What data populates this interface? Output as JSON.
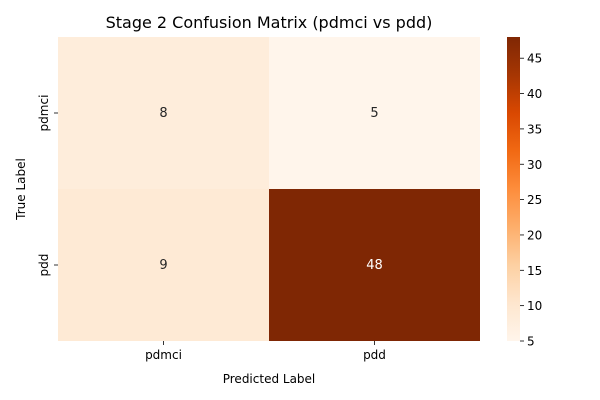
{
  "chart_data": {
    "type": "heatmap",
    "title": "Stage 2 Confusion Matrix (pdmci vs pdd)",
    "xlabel": "Predicted Label",
    "ylabel": "True Label",
    "x_categories": [
      "pdmci",
      "pdd"
    ],
    "y_categories": [
      "pdmci",
      "pdd"
    ],
    "values": [
      [
        8,
        5
      ],
      [
        9,
        48
      ]
    ],
    "colormap": "Oranges",
    "colorbar": {
      "min": 5,
      "max": 48,
      "ticks": [
        5,
        10,
        15,
        20,
        25,
        30,
        35,
        40,
        45
      ]
    },
    "grid": false
  }
}
